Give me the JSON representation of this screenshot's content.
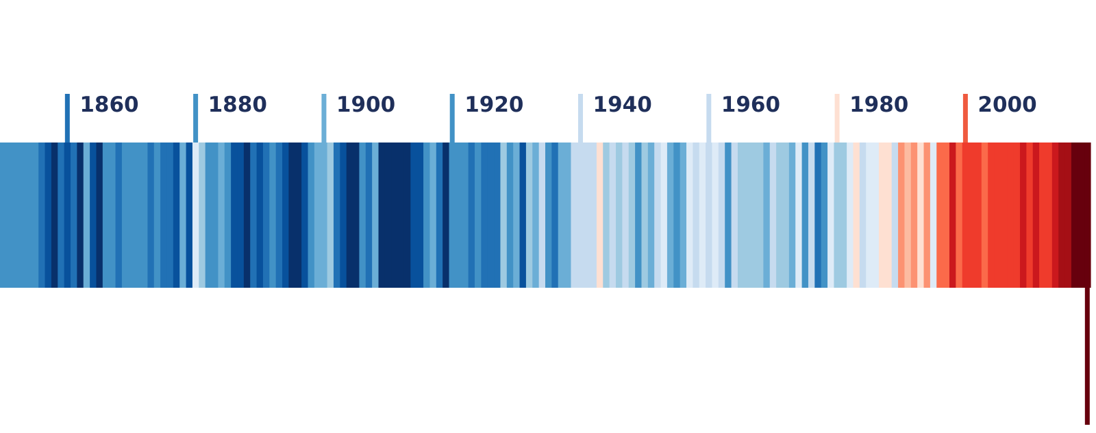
{
  "chart_data": {
    "type": "heatmap",
    "title": "",
    "xlabel": "",
    "ylabel": "",
    "x_range": [
      1850,
      2019
    ],
    "palette": [
      "#08306b",
      "#08519c",
      "#2171b5",
      "#4292c6",
      "#6baed6",
      "#9ecae1",
      "#c6dbef",
      "#deebf7",
      "#fee0d2",
      "#fcbba1",
      "#fc9272",
      "#fb6a4a",
      "#ef3b2c",
      "#cb181d",
      "#a50f15",
      "#67000d"
    ],
    "years": [
      1850,
      1851,
      1852,
      1853,
      1854,
      1855,
      1856,
      1857,
      1858,
      1859,
      1860,
      1861,
      1862,
      1863,
      1864,
      1865,
      1866,
      1867,
      1868,
      1869,
      1870,
      1871,
      1872,
      1873,
      1874,
      1875,
      1876,
      1877,
      1878,
      1879,
      1880,
      1881,
      1882,
      1883,
      1884,
      1885,
      1886,
      1887,
      1888,
      1889,
      1890,
      1891,
      1892,
      1893,
      1894,
      1895,
      1896,
      1897,
      1898,
      1899,
      1900,
      1901,
      1902,
      1903,
      1904,
      1905,
      1906,
      1907,
      1908,
      1909,
      1910,
      1911,
      1912,
      1913,
      1914,
      1915,
      1916,
      1917,
      1918,
      1919,
      1920,
      1921,
      1922,
      1923,
      1924,
      1925,
      1926,
      1927,
      1928,
      1929,
      1930,
      1931,
      1932,
      1933,
      1934,
      1935,
      1936,
      1937,
      1938,
      1939,
      1940,
      1941,
      1942,
      1943,
      1944,
      1945,
      1946,
      1947,
      1948,
      1949,
      1950,
      1951,
      1952,
      1953,
      1954,
      1955,
      1956,
      1957,
      1958,
      1959,
      1960,
      1961,
      1962,
      1963,
      1964,
      1965,
      1966,
      1967,
      1968,
      1969,
      1970,
      1971,
      1972,
      1973,
      1974,
      1975,
      1976,
      1977,
      1978,
      1979,
      1980,
      1981,
      1982,
      1983,
      1984,
      1985,
      1986,
      1987,
      1988,
      1989,
      1990,
      1991,
      1992,
      1993,
      1994,
      1995,
      1996,
      1997,
      1998,
      1999,
      2000,
      2001,
      2002,
      2003,
      2004,
      2005,
      2006,
      2007,
      2008,
      2009,
      2010,
      2011,
      2012,
      2013,
      2014,
      2015,
      2016,
      2017,
      2018,
      2019
    ],
    "values": [
      3,
      3,
      3,
      3,
      3,
      3,
      2,
      1,
      0,
      2,
      1,
      2,
      0,
      4,
      1,
      0,
      3,
      3,
      2,
      3,
      3,
      3,
      3,
      2,
      3,
      2,
      2,
      1,
      4,
      1,
      7,
      5,
      3,
      3,
      4,
      3,
      1,
      1,
      0,
      2,
      1,
      2,
      3,
      2,
      1,
      0,
      0,
      1,
      3,
      4,
      4,
      5,
      2,
      1,
      0,
      0,
      3,
      2,
      4,
      0,
      0,
      0,
      0,
      0,
      1,
      1,
      3,
      4,
      2,
      0,
      3,
      3,
      3,
      2,
      3,
      2,
      2,
      2,
      5,
      3,
      4,
      1,
      5,
      4,
      6,
      3,
      2,
      4,
      4,
      6,
      6,
      6,
      6,
      8,
      5,
      6,
      5,
      6,
      5,
      3,
      5,
      4,
      6,
      7,
      4,
      3,
      4,
      7,
      6,
      7,
      6,
      7,
      6,
      3,
      6,
      5,
      5,
      5,
      5,
      4,
      6,
      5,
      5,
      4,
      7,
      3,
      6,
      2,
      3,
      7,
      5,
      5,
      7,
      8,
      6,
      7,
      7,
      8,
      8,
      6,
      10,
      9,
      10,
      8,
      10,
      7,
      11,
      11,
      13,
      11,
      12,
      12,
      12,
      11,
      12,
      12,
      12,
      12,
      12,
      13,
      12,
      13,
      12,
      12,
      13,
      14,
      14,
      15,
      15,
      15
    ],
    "value_scale": "palette index, 0 = coolest, 15 = warmest",
    "x_ticks": [
      {
        "label": "1860",
        "color": "#2171b5"
      },
      {
        "label": "1880",
        "color": "#4292c6"
      },
      {
        "label": "1900",
        "color": "#6baed6"
      },
      {
        "label": "1920",
        "color": "#4292c6"
      },
      {
        "label": "1940",
        "color": "#c6dbef"
      },
      {
        "label": "1960",
        "color": "#c6dbef"
      },
      {
        "label": "1980",
        "color": "#fee0d2"
      },
      {
        "label": "2000",
        "color": "#ef5a3f"
      }
    ],
    "final_marker_color": "#67000d",
    "grid": false,
    "legend": "none"
  }
}
